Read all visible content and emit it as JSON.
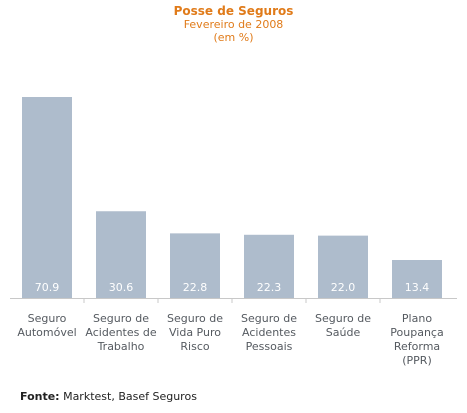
{
  "chart_data": {
    "type": "bar",
    "title": "Posse de Seguros",
    "subtitle": "Fevereiro de 2008",
    "unit": "(em %)",
    "categories": [
      [
        "Seguro",
        "Automóvel"
      ],
      [
        "Seguro de",
        "Acidentes de",
        "Trabalho"
      ],
      [
        "Seguro de",
        "Vida Puro",
        "Risco"
      ],
      [
        "Seguro de",
        "Acidentes",
        "Pessoais"
      ],
      [
        "Seguro de",
        "Saúde"
      ],
      [
        "Plano",
        "Poupança",
        "Reforma",
        "(PPR)"
      ]
    ],
    "values": [
      70.9,
      30.6,
      22.8,
      22.3,
      22.0,
      13.4
    ],
    "value_labels": [
      "70.9",
      "30.6",
      "22.8",
      "22.3",
      "22.0",
      "13.4"
    ],
    "ylim": [
      0,
      75
    ],
    "grid": false,
    "colors": {
      "bar": "#aebccc",
      "title": "#e07b1a"
    }
  },
  "source": {
    "label": "Fonte:",
    "text": "Marktest, Basef Seguros"
  }
}
